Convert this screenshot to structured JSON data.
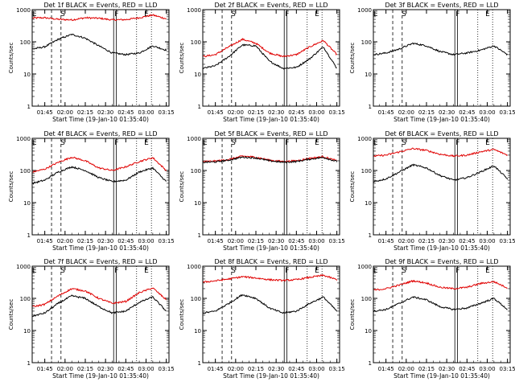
{
  "page_title": "",
  "colors": {
    "events": "#000000",
    "lld": "#e00000",
    "axis": "#000000"
  },
  "chart_data": [
    {
      "type": "line",
      "title": "Det 1f BLACK = Events, RED = LLD",
      "xlabel": "Start Time (19-Jan-10 01:35:40)",
      "ylabel": "Counts/sec",
      "xlim": [
        "01:35:40",
        "03:17:00"
      ],
      "ylim": [
        1,
        1000
      ],
      "yscale": "log",
      "ytick_labels": [
        "1",
        "10",
        "100",
        "1000"
      ],
      "xtick_labels": [
        "01:45",
        "02:00",
        "02:15",
        "02:30",
        "02:45",
        "03:00",
        "03:15"
      ],
      "grid": false,
      "markers": [
        {
          "label": "E",
          "time": "01:35"
        },
        {
          "label": "S",
          "time": "01:56"
        },
        {
          "label": "F",
          "time": "02:36"
        },
        {
          "label": "E",
          "time": "02:58"
        }
      ],
      "series": [
        {
          "color": "red",
          "name": "LLD",
          "x": [
            "01:36",
            "01:45",
            "01:55",
            "02:05",
            "02:15",
            "02:25",
            "02:35",
            "02:45",
            "02:55",
            "03:05",
            "03:15"
          ],
          "values": [
            550,
            560,
            500,
            480,
            560,
            540,
            480,
            490,
            560,
            680,
            520
          ]
        },
        {
          "color": "black",
          "name": "Events",
          "x": [
            "01:36",
            "01:45",
            "01:55",
            "02:05",
            "02:15",
            "02:25",
            "02:35",
            "02:45",
            "02:55",
            "03:05",
            "03:15"
          ],
          "values": [
            60,
            70,
            120,
            170,
            130,
            75,
            45,
            40,
            45,
            75,
            55
          ]
        }
      ]
    },
    {
      "type": "line",
      "title": "Det 2f BLACK = Events, RED = LLD",
      "xlabel": "Start Time (19-Jan-10 01:35:40)",
      "ylabel": "Counts/sec",
      "xlim": [
        "01:35:40",
        "03:17:00"
      ],
      "ylim": [
        1,
        1000
      ],
      "yscale": "log",
      "ytick_labels": [
        "1",
        "10",
        "100",
        "1000"
      ],
      "xtick_labels": [
        "01:45",
        "02:00",
        "02:15",
        "02:30",
        "02:45",
        "03:00",
        "03:15"
      ],
      "grid": false,
      "markers": [
        {
          "label": "S",
          "time": "01:56"
        },
        {
          "label": "F",
          "time": "02:36"
        },
        {
          "label": "E",
          "time": "02:58"
        }
      ],
      "series": [
        {
          "color": "red",
          "name": "LLD",
          "x": [
            "01:36",
            "01:45",
            "01:55",
            "02:05",
            "02:15",
            "02:25",
            "02:35",
            "02:45",
            "02:55",
            "03:05",
            "03:15"
          ],
          "values": [
            35,
            40,
            70,
            120,
            90,
            45,
            35,
            40,
            70,
            110,
            40
          ]
        },
        {
          "color": "black",
          "name": "Events",
          "x": [
            "01:36",
            "01:45",
            "01:55",
            "02:05",
            "02:15",
            "02:25",
            "02:35",
            "02:45",
            "02:55",
            "03:05",
            "03:15"
          ],
          "values": [
            15,
            18,
            35,
            80,
            75,
            25,
            15,
            16,
            30,
            70,
            15
          ]
        }
      ]
    },
    {
      "type": "line",
      "title": "Det 3f BLACK = Events, RED = LLD",
      "xlabel": "Start Time (19-Jan-10 01:35:40)",
      "ylabel": "Counts/sec",
      "xlim": [
        "01:35:40",
        "03:17:00"
      ],
      "ylim": [
        1,
        1000
      ],
      "yscale": "log",
      "ytick_labels": [
        "1",
        "10",
        "100",
        "1000"
      ],
      "xtick_labels": [
        "01:45",
        "02:00",
        "02:15",
        "02:30",
        "02:45",
        "03:00",
        "03:15"
      ],
      "grid": false,
      "markers": [
        {
          "label": "E",
          "time": "01:35"
        },
        {
          "label": "S",
          "time": "01:56"
        },
        {
          "label": "F",
          "time": "02:36"
        },
        {
          "label": "E",
          "time": "02:58"
        }
      ],
      "series": [
        {
          "color": "black",
          "name": "Events",
          "x": [
            "01:36",
            "01:45",
            "01:55",
            "02:05",
            "02:15",
            "02:25",
            "02:35",
            "02:45",
            "02:55",
            "03:05",
            "03:15"
          ],
          "values": [
            40,
            45,
            60,
            90,
            75,
            50,
            40,
            45,
            55,
            75,
            40
          ]
        }
      ]
    },
    {
      "type": "line",
      "title": "Det 4f BLACK = Events, RED = LLD",
      "xlabel": "Start Time (19-Jan-10 01:35:40)",
      "ylabel": "Counts/sec",
      "xlim": [
        "01:35:40",
        "03:17:00"
      ],
      "ylim": [
        1,
        1000
      ],
      "yscale": "log",
      "ytick_labels": [
        "1",
        "10",
        "100",
        "1000"
      ],
      "xtick_labels": [
        "01:45",
        "02:00",
        "02:15",
        "02:30",
        "02:45",
        "03:00",
        "03:15"
      ],
      "grid": false,
      "markers": [
        {
          "label": "E",
          "time": "01:35"
        },
        {
          "label": "S",
          "time": "01:56"
        },
        {
          "label": "F",
          "time": "02:36"
        },
        {
          "label": "E",
          "time": "02:58"
        }
      ],
      "series": [
        {
          "color": "red",
          "name": "LLD",
          "x": [
            "01:36",
            "01:45",
            "01:55",
            "02:05",
            "02:15",
            "02:25",
            "02:35",
            "02:45",
            "02:55",
            "03:05",
            "03:15"
          ],
          "values": [
            90,
            110,
            180,
            260,
            200,
            120,
            100,
            130,
            190,
            250,
            100
          ]
        },
        {
          "color": "black",
          "name": "Events",
          "x": [
            "01:36",
            "01:45",
            "01:55",
            "02:05",
            "02:15",
            "02:25",
            "02:35",
            "02:45",
            "02:55",
            "03:05",
            "03:15"
          ],
          "values": [
            40,
            50,
            90,
            130,
            100,
            60,
            45,
            50,
            90,
            120,
            45
          ]
        }
      ]
    },
    {
      "type": "line",
      "title": "Det 5f BLACK = Events, RED = LLD",
      "xlabel": "Start Time (19-Jan-10 01:35:40)",
      "ylabel": "Counts/sec",
      "xlim": [
        "01:35:40",
        "03:17:00"
      ],
      "ylim": [
        1,
        1000
      ],
      "yscale": "log",
      "ytick_labels": [
        "1",
        "10",
        "100",
        "1000"
      ],
      "xtick_labels": [
        "01:45",
        "02:00",
        "02:15",
        "02:30",
        "02:45",
        "03:00",
        "03:15"
      ],
      "grid": false,
      "markers": [
        {
          "label": "E",
          "time": "01:35"
        },
        {
          "label": "S",
          "time": "01:56"
        },
        {
          "label": "F",
          "time": "02:36"
        },
        {
          "label": "E",
          "time": "02:58"
        }
      ],
      "series": [
        {
          "color": "red",
          "name": "LLD",
          "x": [
            "01:36",
            "01:45",
            "01:55",
            "02:05",
            "02:15",
            "02:25",
            "02:35",
            "02:45",
            "02:55",
            "03:05",
            "03:15"
          ],
          "values": [
            190,
            195,
            220,
            280,
            260,
            210,
            190,
            200,
            240,
            270,
            200
          ]
        },
        {
          "color": "black",
          "name": "Events",
          "x": [
            "01:36",
            "01:45",
            "01:55",
            "02:05",
            "02:15",
            "02:25",
            "02:35",
            "02:45",
            "02:55",
            "03:05",
            "03:15"
          ],
          "values": [
            180,
            185,
            210,
            260,
            245,
            200,
            180,
            190,
            225,
            255,
            190
          ]
        }
      ]
    },
    {
      "type": "line",
      "title": "Det 6f BLACK = Events, RED = LLD",
      "xlabel": "Start Time (19-Jan-10 01:35:40)",
      "ylabel": "Counts/sec",
      "xlim": [
        "01:35:40",
        "03:17:00"
      ],
      "ylim": [
        1,
        1000
      ],
      "yscale": "log",
      "ytick_labels": [
        "1",
        "10",
        "100",
        "1000"
      ],
      "xtick_labels": [
        "01:45",
        "02:00",
        "02:15",
        "02:30",
        "02:45",
        "03:00",
        "03:15"
      ],
      "grid": false,
      "markers": [
        {
          "label": "E",
          "time": "01:35"
        },
        {
          "label": "S",
          "time": "01:56"
        },
        {
          "label": "F",
          "time": "02:36"
        },
        {
          "label": "E",
          "time": "02:58"
        }
      ],
      "series": [
        {
          "color": "red",
          "name": "LLD",
          "x": [
            "01:36",
            "01:45",
            "01:55",
            "02:05",
            "02:15",
            "02:25",
            "02:35",
            "02:45",
            "02:55",
            "03:05",
            "03:15"
          ],
          "values": [
            280,
            300,
            380,
            480,
            420,
            320,
            280,
            300,
            380,
            450,
            300
          ]
        },
        {
          "color": "black",
          "name": "Events",
          "x": [
            "01:36",
            "01:45",
            "01:55",
            "02:05",
            "02:15",
            "02:25",
            "02:35",
            "02:45",
            "02:55",
            "03:05",
            "03:15"
          ],
          "values": [
            45,
            55,
            90,
            150,
            120,
            70,
            50,
            60,
            90,
            140,
            55
          ]
        }
      ]
    },
    {
      "type": "line",
      "title": "Det 7f BLACK = Events, RED = LLD",
      "xlabel": "Start Time (19-Jan-10 01:35:40)",
      "ylabel": "Counts/sec",
      "xlim": [
        "01:35:40",
        "03:17:00"
      ],
      "ylim": [
        1,
        1000
      ],
      "yscale": "log",
      "ytick_labels": [
        "1",
        "10",
        "100",
        "1000"
      ],
      "xtick_labels": [
        "01:45",
        "02:00",
        "02:15",
        "02:30",
        "02:45",
        "03:00",
        "03:15"
      ],
      "grid": false,
      "markers": [
        {
          "label": "E",
          "time": "01:35"
        },
        {
          "label": "S",
          "time": "01:56"
        },
        {
          "label": "F",
          "time": "02:36"
        },
        {
          "label": "E",
          "time": "02:58"
        }
      ],
      "series": [
        {
          "color": "red",
          "name": "LLD",
          "x": [
            "01:36",
            "01:45",
            "01:55",
            "02:05",
            "02:15",
            "02:25",
            "02:35",
            "02:45",
            "02:55",
            "03:05",
            "03:15"
          ],
          "values": [
            55,
            65,
            120,
            200,
            170,
            100,
            70,
            80,
            150,
            210,
            90
          ]
        },
        {
          "color": "black",
          "name": "Events",
          "x": [
            "01:36",
            "01:45",
            "01:55",
            "02:05",
            "02:15",
            "02:25",
            "02:35",
            "02:45",
            "02:55",
            "03:05",
            "03:15"
          ],
          "values": [
            28,
            35,
            70,
            120,
            100,
            55,
            35,
            40,
            75,
            110,
            40
          ]
        }
      ]
    },
    {
      "type": "line",
      "title": "Det 8f BLACK = Events, RED = LLD",
      "xlabel": "Start Time (19-Jan-10 01:35:40)",
      "ylabel": "Counts/sec",
      "xlim": [
        "01:35:40",
        "03:17:00"
      ],
      "ylim": [
        1,
        1000
      ],
      "yscale": "log",
      "ytick_labels": [
        "1",
        "10",
        "100",
        "1000"
      ],
      "xtick_labels": [
        "01:45",
        "02:00",
        "02:15",
        "02:30",
        "02:45",
        "03:00",
        "03:15"
      ],
      "grid": false,
      "markers": [
        {
          "label": "S",
          "time": "01:56"
        },
        {
          "label": "F",
          "time": "02:36"
        },
        {
          "label": "E",
          "time": "02:58"
        }
      ],
      "series": [
        {
          "color": "red",
          "name": "LLD",
          "x": [
            "01:36",
            "01:45",
            "01:55",
            "02:05",
            "02:15",
            "02:25",
            "02:35",
            "02:45",
            "02:55",
            "03:05",
            "03:15"
          ],
          "values": [
            320,
            350,
            400,
            470,
            430,
            380,
            360,
            380,
            450,
            520,
            380
          ]
        },
        {
          "color": "black",
          "name": "Events",
          "x": [
            "01:36",
            "01:45",
            "01:55",
            "02:05",
            "02:15",
            "02:25",
            "02:35",
            "02:45",
            "02:55",
            "03:05",
            "03:15"
          ],
          "values": [
            35,
            40,
            70,
            130,
            100,
            50,
            35,
            40,
            70,
            110,
            40
          ]
        }
      ]
    },
    {
      "type": "line",
      "title": "Det 9f BLACK = Events, RED = LLD",
      "xlabel": "Start Time (19-Jan-10 01:35:40)",
      "ylabel": "Counts/sec",
      "xlim": [
        "01:35:40",
        "03:17:00"
      ],
      "ylim": [
        1,
        1000
      ],
      "yscale": "log",
      "ytick_labels": [
        "1",
        "10",
        "100",
        "1000"
      ],
      "xtick_labels": [
        "01:45",
        "02:00",
        "02:15",
        "02:30",
        "02:45",
        "03:00",
        "03:15"
      ],
      "grid": false,
      "markers": [
        {
          "label": "E",
          "time": "01:35"
        },
        {
          "label": "S",
          "time": "01:56"
        },
        {
          "label": "F",
          "time": "02:36"
        },
        {
          "label": "E",
          "time": "02:58"
        }
      ],
      "series": [
        {
          "color": "red",
          "name": "LLD",
          "x": [
            "01:36",
            "01:45",
            "01:55",
            "02:05",
            "02:15",
            "02:25",
            "02:35",
            "02:45",
            "02:55",
            "03:05",
            "03:15"
          ],
          "values": [
            180,
            200,
            260,
            350,
            300,
            220,
            200,
            220,
            290,
            330,
            210
          ]
        },
        {
          "color": "black",
          "name": "Events",
          "x": [
            "01:36",
            "01:45",
            "01:55",
            "02:05",
            "02:15",
            "02:25",
            "02:35",
            "02:45",
            "02:55",
            "03:05",
            "03:15"
          ],
          "values": [
            40,
            45,
            70,
            110,
            90,
            55,
            45,
            50,
            70,
            100,
            45
          ]
        }
      ]
    }
  ]
}
